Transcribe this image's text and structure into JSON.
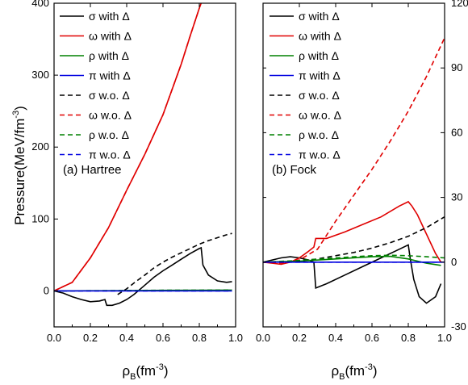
{
  "chart_data": [
    {
      "type": "line",
      "panel_label": "(a) Hartree",
      "ylabel": "Pressure(MeV/fm$^{-3}$)",
      "xlabel": "ρ_B(fm^-3)",
      "xlim": [
        0.0,
        1.0
      ],
      "ylim": [
        -50,
        400
      ],
      "xticks": [
        "0.0",
        "0.2",
        "0.4",
        "0.6",
        "0.8",
        "1.0"
      ],
      "yticks": [
        0,
        100,
        200,
        300,
        400
      ],
      "yaxis_side": "left",
      "legend_position": "top-right",
      "series": [
        {
          "name": "σ with Δ",
          "color": "#000000",
          "dash": "solid",
          "x": [
            0.0,
            0.05,
            0.1,
            0.15,
            0.2,
            0.25,
            0.28,
            0.29,
            0.32,
            0.36,
            0.4,
            0.44,
            0.5,
            0.55,
            0.6,
            0.65,
            0.7,
            0.75,
            0.8,
            0.81,
            0.82,
            0.85,
            0.9,
            0.95,
            0.98
          ],
          "y": [
            0,
            -3,
            -8,
            -12,
            -15,
            -14,
            -12,
            -20,
            -20,
            -17,
            -12,
            -5,
            8,
            19,
            28,
            36,
            44,
            52,
            59,
            60,
            36,
            22,
            14,
            12,
            13
          ]
        },
        {
          "name": "ω with Δ",
          "color": "#e00000",
          "dash": "solid",
          "x": [
            0.0,
            0.1,
            0.2,
            0.3,
            0.4,
            0.5,
            0.6,
            0.7,
            0.75,
            0.8,
            0.81
          ],
          "y": [
            0,
            12,
            46,
            88,
            140,
            190,
            245,
            315,
            355,
            393,
            400
          ]
        },
        {
          "name": "ρ with Δ",
          "color": "#008000",
          "dash": "solid",
          "x": [
            0.0,
            0.2,
            0.4,
            0.6,
            0.8,
            0.98
          ],
          "y": [
            0,
            0.3,
            0.5,
            0.8,
            1.0,
            1.2
          ]
        },
        {
          "name": "π with Δ",
          "color": "#0000e0",
          "dash": "solid",
          "x": [
            0.0,
            0.2,
            0.4,
            0.6,
            0.8,
            0.98
          ],
          "y": [
            0,
            0,
            0,
            0,
            0,
            0
          ]
        },
        {
          "name": "σ w.o. Δ",
          "color": "#000000",
          "dash": "dashed",
          "x": [
            0.35,
            0.4,
            0.45,
            0.5,
            0.55,
            0.6,
            0.65,
            0.7,
            0.75,
            0.8,
            0.85,
            0.9,
            0.95,
            0.98
          ],
          "y": [
            -5,
            3,
            13,
            22,
            32,
            40,
            47,
            53,
            59,
            65,
            70,
            74,
            78,
            80
          ]
        },
        {
          "name": "ω w.o. Δ",
          "color": "#e00000",
          "dash": "dashed",
          "x": [
            0.0,
            0.1,
            0.2,
            0.3,
            0.4,
            0.5,
            0.6,
            0.7,
            0.75,
            0.8
          ],
          "y": [
            0,
            12,
            46,
            88,
            140,
            190,
            245,
            315,
            355,
            393
          ]
        },
        {
          "name": "ρ w.o. Δ",
          "color": "#008000",
          "dash": "dashed",
          "x": [
            0.0,
            0.2,
            0.4,
            0.6,
            0.8,
            0.98
          ],
          "y": [
            0,
            0.3,
            0.6,
            0.9,
            1.1,
            1.3
          ]
        },
        {
          "name": "π w.o. Δ",
          "color": "#0000e0",
          "dash": "dashed",
          "x": [
            0.0,
            0.2,
            0.4,
            0.6,
            0.8,
            0.98
          ],
          "y": [
            0,
            0,
            0,
            0,
            0,
            0
          ]
        }
      ]
    },
    {
      "type": "line",
      "panel_label": "(b) Fock",
      "xlabel": "ρ_B(fm^-3)",
      "xlim": [
        0.0,
        1.0
      ],
      "ylim": [
        -30,
        120
      ],
      "xticks": [
        "0.0",
        "0.2",
        "0.4",
        "0.6",
        "0.8",
        "1.0"
      ],
      "yticks": [
        -30,
        0,
        30,
        60,
        90,
        120
      ],
      "yaxis_side": "right",
      "legend_position": "top-left",
      "series": [
        {
          "name": "σ with Δ",
          "color": "#000000",
          "dash": "solid",
          "x": [
            0.0,
            0.05,
            0.1,
            0.15,
            0.2,
            0.25,
            0.28,
            0.29,
            0.35,
            0.45,
            0.55,
            0.65,
            0.75,
            0.8,
            0.81,
            0.83,
            0.86,
            0.9,
            0.95,
            0.98
          ],
          "y": [
            0,
            1,
            2,
            2.5,
            2,
            1,
            0,
            -12,
            -10,
            -6,
            -2,
            2,
            6,
            8,
            2,
            -8,
            -16,
            -19,
            -16,
            -10
          ]
        },
        {
          "name": "ω with Δ",
          "color": "#e00000",
          "dash": "solid",
          "x": [
            0.0,
            0.05,
            0.1,
            0.15,
            0.2,
            0.25,
            0.28,
            0.29,
            0.35,
            0.45,
            0.55,
            0.65,
            0.75,
            0.8,
            0.82,
            0.85,
            0.9,
            0.95,
            0.98
          ],
          "y": [
            0,
            -0.5,
            -1,
            0,
            2,
            5,
            7,
            11,
            11,
            14,
            17.5,
            21,
            26,
            28,
            26,
            22,
            13,
            4,
            0
          ]
        },
        {
          "name": "ρ with Δ",
          "color": "#008000",
          "dash": "solid",
          "x": [
            0.0,
            0.2,
            0.4,
            0.6,
            0.7,
            0.8,
            0.9,
            0.98
          ],
          "y": [
            0,
            0.5,
            1.5,
            2.5,
            2.7,
            1.5,
            -0.5,
            -1.5
          ]
        },
        {
          "name": "π with Δ",
          "color": "#0000e0",
          "dash": "solid",
          "x": [
            0.0,
            0.2,
            0.4,
            0.6,
            0.8,
            0.98
          ],
          "y": [
            0,
            0,
            0,
            0,
            0,
            0
          ]
        },
        {
          "name": "σ w.o. Δ",
          "color": "#000000",
          "dash": "dashed",
          "x": [
            0.0,
            0.2,
            0.3,
            0.4,
            0.5,
            0.6,
            0.7,
            0.8,
            0.9,
            1.0
          ],
          "y": [
            0,
            0.5,
            1.5,
            3,
            4.5,
            6.5,
            9,
            12,
            16,
            21
          ]
        },
        {
          "name": "ω w.o. Δ",
          "color": "#e00000",
          "dash": "dashed",
          "x": [
            0.0,
            0.1,
            0.2,
            0.3,
            0.4,
            0.5,
            0.6,
            0.7,
            0.8,
            0.9,
            1.0
          ],
          "y": [
            0,
            -0.5,
            1,
            6,
            19,
            31,
            43,
            56,
            70,
            86,
            104
          ]
        },
        {
          "name": "ρ w.o. Δ",
          "color": "#008000",
          "dash": "dashed",
          "x": [
            0.0,
            0.2,
            0.4,
            0.6,
            0.7,
            0.8,
            0.9,
            1.0
          ],
          "y": [
            0,
            0.8,
            2,
            3,
            3.2,
            3,
            2.5,
            2
          ]
        },
        {
          "name": "π w.o. Δ",
          "color": "#0000e0",
          "dash": "dashed",
          "x": [
            0.0,
            0.2,
            0.4,
            0.6,
            0.8,
            1.0
          ],
          "y": [
            0,
            0,
            0,
            0,
            0,
            0
          ]
        }
      ]
    }
  ]
}
